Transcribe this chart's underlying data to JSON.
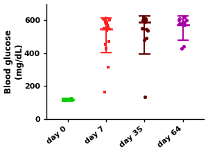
{
  "title": "",
  "ylabel": "Blood glucose\n(mg/dL)",
  "categories": [
    "day 0",
    "day 7",
    "day 35",
    "day 64"
  ],
  "colors": [
    "#00cc00",
    "#ff2222",
    "#660000",
    "#aa00aa"
  ],
  "ylim": [
    0,
    700
  ],
  "yticks": [
    0,
    200,
    400,
    600
  ],
  "day0_points": [
    115,
    120,
    118,
    113,
    125,
    117,
    119,
    122,
    116,
    114,
    112,
    120,
    118,
    115,
    123,
    119,
    116,
    114,
    121,
    117
  ],
  "day7_main": [
    540,
    545,
    550,
    590,
    600,
    610,
    580,
    560,
    570,
    595,
    605,
    615,
    590,
    430,
    455,
    470
  ],
  "day7_outliers": [
    315,
    165
  ],
  "day35_main": [
    590,
    600,
    610,
    620,
    600,
    605,
    595,
    490,
    480,
    540,
    550,
    545,
    600,
    605,
    610
  ],
  "day35_outliers": [
    135
  ],
  "day64_main": [
    585,
    600,
    610,
    620,
    580,
    590,
    600,
    570,
    580
  ],
  "day64_outliers": [
    430,
    440
  ],
  "day7_mean": 545,
  "day7_err_plus": 70,
  "day7_err_minus": 140,
  "day35_mean": 590,
  "day35_err_plus": 35,
  "day35_err_minus": 195,
  "day64_mean": 570,
  "day64_err_plus": 55,
  "day64_err_minus": 90,
  "day0_mean": 118,
  "day0_err": 8,
  "figsize": [
    3.0,
    2.21
  ],
  "dpi": 100
}
